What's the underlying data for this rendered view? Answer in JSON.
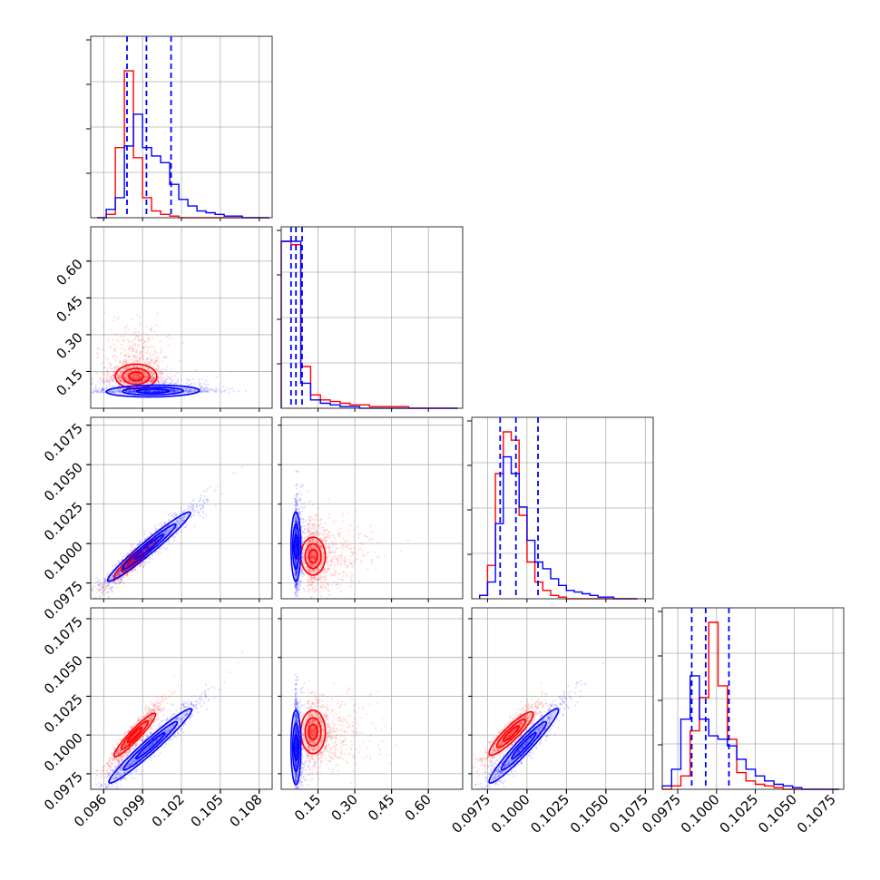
{
  "chart_data": {
    "type": "corner",
    "colors": {
      "series_a": "#ff0000",
      "series_b": "#0000ff"
    },
    "grid": true,
    "quantile_lines": "dashed",
    "parameters": [
      {
        "range": [
          0.095,
          0.109
        ],
        "ticks": [
          "0.096",
          "0.099",
          "0.102",
          "0.105",
          "0.108"
        ],
        "tick_values": [
          0.096,
          0.099,
          0.102,
          0.105,
          0.108
        ]
      },
      {
        "range": [
          0.0,
          0.74
        ],
        "ticks": [
          "0.15",
          "0.30",
          "0.45",
          "0.60"
        ],
        "tick_values": [
          0.15,
          0.3,
          0.45,
          0.6
        ]
      },
      {
        "range": [
          0.0965,
          0.108
        ],
        "ticks": [
          "0.0975",
          "0.1000",
          "0.1025",
          "0.1050",
          "0.1075"
        ],
        "tick_values": [
          0.0975,
          0.1,
          0.1025,
          0.105,
          0.1075
        ]
      },
      {
        "range": [
          0.0965,
          0.1082
        ],
        "ticks": [
          "0.0975",
          "0.1000",
          "0.1025",
          "0.1050",
          "0.1075"
        ],
        "tick_values": [
          0.0975,
          0.1,
          0.1025,
          0.105,
          0.1075
        ]
      }
    ],
    "marginals": [
      {
        "quantile_lines": [
          0.0978,
          0.0993,
          0.1012
        ],
        "bin_edges": [
          0.0955,
          0.0962,
          0.0969,
          0.0976,
          0.0983,
          0.099,
          0.0997,
          0.1004,
          0.1011,
          0.1018,
          0.1025,
          0.1032,
          0.1039,
          0.1046,
          0.1053,
          0.106,
          0.1067,
          0.1074,
          0.1081,
          0.1088
        ],
        "series": [
          {
            "color": "#ff0000",
            "counts": [
              0.0,
              0.02,
              0.42,
              0.88,
              0.36,
              0.12,
              0.04,
              0.02,
              0.01,
              0.0,
              0.0,
              0.0,
              0.0,
              0.0,
              0.0,
              0.0,
              0.0,
              0.0,
              0.0
            ]
          },
          {
            "color": "#0000ff",
            "counts": [
              0.0,
              0.05,
              0.12,
              0.43,
              0.62,
              0.42,
              0.37,
              0.33,
              0.2,
              0.11,
              0.07,
              0.04,
              0.03,
              0.02,
              0.01,
              0.01,
              0.0,
              0.0,
              0.0
            ]
          }
        ]
      },
      {
        "quantile_lines": [
          0.04,
          0.06,
          0.085
        ],
        "bin_edges": [
          0.0,
          0.04,
          0.08,
          0.12,
          0.16,
          0.2,
          0.24,
          0.28,
          0.32,
          0.36,
          0.4,
          0.44,
          0.48,
          0.52,
          0.56,
          0.6,
          0.64,
          0.68,
          0.72
        ],
        "series": [
          {
            "color": "#ff0000",
            "counts": [
              1.0,
              0.98,
              0.25,
              0.08,
              0.05,
              0.04,
              0.03,
              0.02,
              0.02,
              0.01,
              0.01,
              0.01,
              0.01,
              0.0,
              0.0,
              0.0,
              0.0,
              0.0
            ]
          },
          {
            "color": "#0000ff",
            "counts": [
              1.0,
              1.0,
              0.15,
              0.05,
              0.03,
              0.02,
              0.01,
              0.01,
              0.0,
              0.0,
              0.0,
              0.0,
              0.0,
              0.0,
              0.0,
              0.0,
              0.0,
              0.0
            ]
          }
        ]
      },
      {
        "quantile_lines": [
          0.0983,
          0.0993,
          0.1007
        ],
        "bin_edges": [
          0.097,
          0.0975,
          0.098,
          0.0985,
          0.099,
          0.0995,
          0.1,
          0.1005,
          0.101,
          0.1015,
          0.102,
          0.1025,
          0.103,
          0.1035,
          0.104,
          0.1045,
          0.105,
          0.1055,
          0.106,
          0.1065,
          0.107
        ],
        "series": [
          {
            "color": "#ff0000",
            "counts": [
              0.02,
              0.2,
              0.75,
              1.0,
              0.95,
              0.5,
              0.22,
              0.1,
              0.05,
              0.02,
              0.01,
              0.0,
              0.0,
              0.0,
              0.0,
              0.0,
              0.0,
              0.0,
              0.0,
              0.0
            ]
          },
          {
            "color": "#0000ff",
            "counts": [
              0.02,
              0.1,
              0.45,
              0.85,
              0.75,
              0.55,
              0.35,
              0.22,
              0.18,
              0.12,
              0.08,
              0.05,
              0.04,
              0.03,
              0.02,
              0.01,
              0.01,
              0.0,
              0.0,
              0.0
            ]
          }
        ]
      },
      {
        "quantile_lines": [
          0.0984,
          0.0993,
          0.1008
        ],
        "bin_edges": [
          0.0965,
          0.0971,
          0.0977,
          0.0983,
          0.0989,
          0.0995,
          0.1001,
          0.1007,
          0.1013,
          0.1019,
          0.1025,
          0.1031,
          0.1037,
          0.1043,
          0.1049,
          0.1055,
          0.1061,
          0.1067,
          0.1073,
          0.1079
        ],
        "series": [
          {
            "color": "#ff0000",
            "counts": [
              0.0,
              0.02,
              0.08,
              0.35,
              0.55,
              1.0,
              0.62,
              0.3,
              0.1,
              0.05,
              0.03,
              0.02,
              0.01,
              0.0,
              0.0,
              0.0,
              0.0,
              0.0,
              0.0
            ]
          },
          {
            "color": "#0000ff",
            "counts": [
              0.02,
              0.12,
              0.42,
              0.68,
              0.42,
              0.32,
              0.3,
              0.26,
              0.18,
              0.12,
              0.08,
              0.05,
              0.03,
              0.02,
              0.01,
              0.0,
              0.0,
              0.0,
              0.0
            ]
          }
        ]
      }
    ],
    "joint": [
      {
        "x_param": 0,
        "y_param": 1,
        "series": [
          {
            "color": "#ff0000",
            "mean": [
              0.0985,
              0.13
            ],
            "sd": [
              0.0012,
              0.12
            ],
            "corr": 0.0,
            "core_sd": [
              0.0008,
              0.025
            ]
          },
          {
            "color": "#0000ff",
            "mean": [
              0.0998,
              0.07
            ],
            "sd": [
              0.0025,
              0.03
            ],
            "corr": 0.1,
            "core_sd": [
              0.0018,
              0.012
            ]
          }
        ]
      },
      {
        "x_param": 0,
        "y_param": 2,
        "series": [
          {
            "color": "#ff0000",
            "mean": [
              0.0984,
              0.099
            ],
            "sd": [
              0.0011,
              0.00085
            ],
            "corr": 0.94,
            "core_sd": [
              0.0008,
              0.0006
            ]
          },
          {
            "color": "#0000ff",
            "mean": [
              0.0995,
              0.0998
            ],
            "sd": [
              0.0022,
              0.00155
            ],
            "corr": 0.97,
            "core_sd": [
              0.0016,
              0.0011
            ]
          }
        ]
      },
      {
        "x_param": 1,
        "y_param": 2,
        "series": [
          {
            "color": "#ff0000",
            "mean": [
              0.13,
              0.0992
            ],
            "sd": [
              0.12,
              0.0011
            ],
            "corr": 0.0,
            "core_sd": [
              0.025,
              0.0006
            ]
          },
          {
            "color": "#0000ff",
            "mean": [
              0.06,
              0.0998
            ],
            "sd": [
              0.02,
              0.0015
            ],
            "corr": 0.0,
            "core_sd": [
              0.01,
              0.0011
            ]
          }
        ]
      },
      {
        "x_param": 0,
        "y_param": 3,
        "series": [
          {
            "color": "#ff0000",
            "mean": [
              0.0984,
              0.1
            ],
            "sd": [
              0.0011,
              0.0011
            ],
            "corr": 0.94,
            "core_sd": [
              0.0008,
              0.0007
            ]
          },
          {
            "color": "#0000ff",
            "mean": [
              0.0996,
              0.0993
            ],
            "sd": [
              0.0022,
              0.0017
            ],
            "corr": 0.97,
            "core_sd": [
              0.0016,
              0.0012
            ]
          }
        ]
      },
      {
        "x_param": 1,
        "y_param": 3,
        "series": [
          {
            "color": "#ff0000",
            "mean": [
              0.13,
              0.1002
            ],
            "sd": [
              0.12,
              0.0011
            ],
            "corr": 0.0,
            "core_sd": [
              0.025,
              0.0007
            ]
          },
          {
            "color": "#0000ff",
            "mean": [
              0.06,
              0.0992
            ],
            "sd": [
              0.02,
              0.0017
            ],
            "corr": 0.0,
            "core_sd": [
              0.01,
              0.0012
            ]
          }
        ]
      },
      {
        "x_param": 2,
        "y_param": 3,
        "series": [
          {
            "color": "#ff0000",
            "mean": [
              0.099,
              0.1001
            ],
            "sd": [
              0.0009,
              0.001
            ],
            "corr": 0.9,
            "core_sd": [
              0.0007,
              0.0007
            ]
          },
          {
            "color": "#0000ff",
            "mean": [
              0.0998,
              0.0993
            ],
            "sd": [
              0.0015,
              0.0017
            ],
            "corr": 0.96,
            "core_sd": [
              0.0011,
              0.0012
            ]
          }
        ]
      }
    ]
  }
}
